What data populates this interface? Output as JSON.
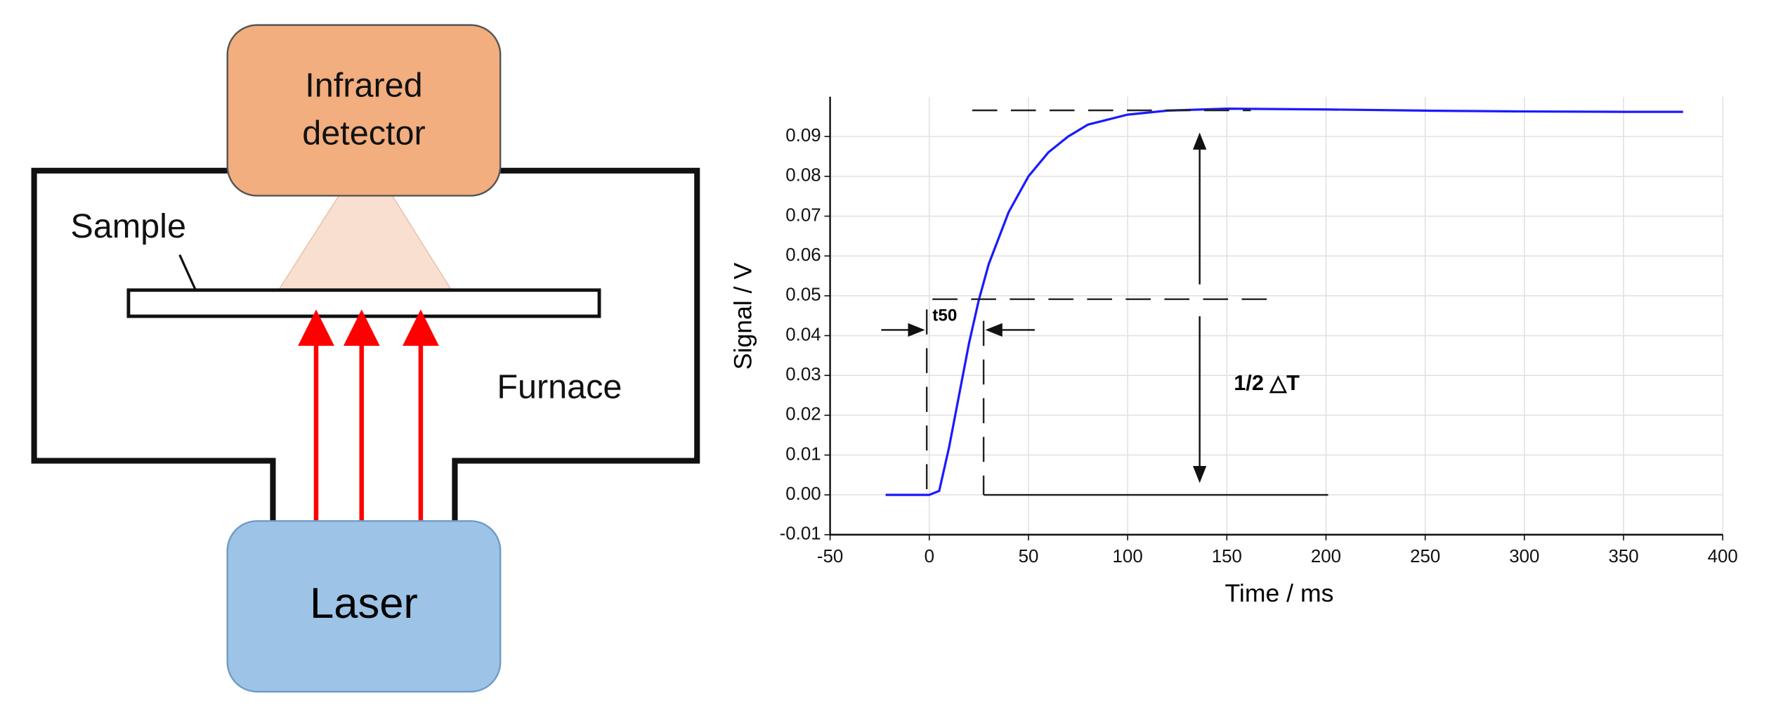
{
  "diagram": {
    "detector": [
      "Infrared",
      "detector"
    ],
    "sample": "Sample",
    "furnace": "Furnace",
    "laser": "Laser"
  },
  "chart_data": {
    "type": "line",
    "x_label": "Time / ms",
    "y_label": "Signal / V",
    "annotations": [
      "t50",
      "1/2 △T"
    ],
    "x": [
      -22,
      -10,
      0,
      5,
      10,
      15,
      20,
      25,
      30,
      40,
      50,
      60,
      70,
      80,
      100,
      120,
      150,
      200,
      250,
      300,
      350,
      380
    ],
    "series": [
      {
        "name": "Signal",
        "color": "#1a1aff",
        "values": [
          0,
          0,
          0,
          0.001,
          0.012,
          0.025,
          0.038,
          0.049,
          0.058,
          0.071,
          0.08,
          0.086,
          0.09,
          0.093,
          0.0955,
          0.0965,
          0.097,
          0.0968,
          0.0965,
          0.0963,
          0.0962,
          0.0962
        ]
      }
    ],
    "xlim": [
      -50,
      400
    ],
    "ylim": [
      -0.01,
      0.1
    ],
    "xticks": [
      -50,
      0,
      50,
      100,
      150,
      200,
      250,
      300,
      350,
      400
    ],
    "yticks": [
      -0.01,
      {
        "value": 0,
        "label": "0.00"
      },
      0.01,
      0.02,
      0.03,
      0.04,
      0.05,
      0.06,
      0.07,
      0.08,
      0.09
    ],
    "grid": true
  }
}
